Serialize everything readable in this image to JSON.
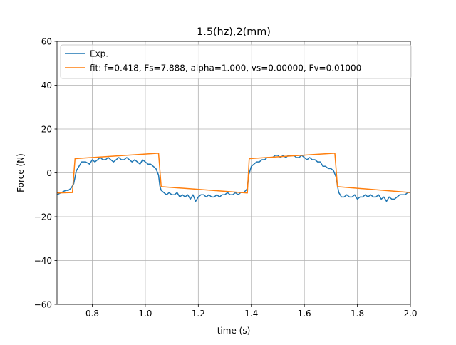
{
  "chart_data": {
    "type": "line",
    "title": "1.5(hz),2(mm)",
    "xlabel": "time (s)",
    "ylabel": "Force (N)",
    "xlim": [
      0.667,
      2.0
    ],
    "ylim": [
      -60,
      60
    ],
    "xticks": [
      0.8,
      1.0,
      1.2,
      1.4,
      1.6,
      1.8,
      2.0
    ],
    "xtick_labels": [
      "0.8",
      "1.0",
      "1.2",
      "1.4",
      "1.6",
      "1.8",
      "2.0"
    ],
    "yticks": [
      -60,
      -40,
      -20,
      0,
      20,
      40,
      60
    ],
    "ytick_labels": [
      "−60",
      "−40",
      "−20",
      "0",
      "20",
      "40",
      "60"
    ],
    "grid": true,
    "legend_position": "top-left",
    "series": [
      {
        "name": "Exp.",
        "color": "#1f77b4",
        "x": [
          0.667,
          0.683,
          0.7,
          0.71,
          0.72,
          0.73,
          0.74,
          0.75,
          0.76,
          0.775,
          0.79,
          0.8,
          0.81,
          0.82,
          0.83,
          0.84,
          0.85,
          0.86,
          0.87,
          0.88,
          0.89,
          0.9,
          0.91,
          0.92,
          0.93,
          0.94,
          0.95,
          0.96,
          0.97,
          0.98,
          0.99,
          1.0,
          1.01,
          1.02,
          1.03,
          1.04,
          1.05,
          1.055,
          1.06,
          1.07,
          1.08,
          1.09,
          1.1,
          1.11,
          1.12,
          1.13,
          1.14,
          1.15,
          1.16,
          1.17,
          1.18,
          1.19,
          1.2,
          1.21,
          1.22,
          1.23,
          1.24,
          1.25,
          1.26,
          1.27,
          1.28,
          1.29,
          1.3,
          1.31,
          1.32,
          1.33,
          1.34,
          1.35,
          1.36,
          1.37,
          1.38,
          1.385,
          1.39,
          1.4,
          1.41,
          1.42,
          1.43,
          1.44,
          1.45,
          1.46,
          1.47,
          1.48,
          1.49,
          1.5,
          1.51,
          1.52,
          1.53,
          1.54,
          1.55,
          1.56,
          1.57,
          1.58,
          1.59,
          1.6,
          1.61,
          1.62,
          1.63,
          1.64,
          1.65,
          1.66,
          1.67,
          1.68,
          1.69,
          1.7,
          1.71,
          1.72,
          1.725,
          1.73,
          1.74,
          1.75,
          1.76,
          1.77,
          1.78,
          1.79,
          1.8,
          1.81,
          1.82,
          1.83,
          1.84,
          1.85,
          1.86,
          1.87,
          1.88,
          1.89,
          1.9,
          1.91,
          1.92,
          1.93,
          1.94,
          1.95,
          1.96,
          1.97,
          1.98,
          1.99,
          2.0
        ],
        "y": [
          -10,
          -9,
          -8,
          -8,
          -7,
          -5,
          1,
          3,
          5,
          5,
          4,
          6,
          5,
          6,
          7,
          6,
          6,
          7,
          6,
          5,
          6,
          7,
          6,
          6,
          7,
          6,
          5,
          6,
          5,
          4,
          6,
          5,
          4,
          4,
          3,
          2,
          -1,
          -6,
          -8,
          -9,
          -10,
          -9,
          -10,
          -10,
          -9,
          -11,
          -10,
          -11,
          -10,
          -12,
          -10,
          -13,
          -11,
          -10,
          -10,
          -11,
          -10,
          -11,
          -11,
          -10,
          -11,
          -10,
          -10,
          -9,
          -10,
          -10,
          -9,
          -10,
          -9,
          -9,
          -8,
          -7,
          -1,
          3,
          4,
          5,
          5,
          6,
          6,
          7,
          7,
          7,
          8,
          8,
          7,
          8,
          7,
          8,
          8,
          8,
          7,
          7,
          8,
          7,
          6,
          7,
          6,
          6,
          5,
          5,
          3,
          3,
          2,
          2,
          1,
          -2,
          -6,
          -9,
          -11,
          -11,
          -10,
          -11,
          -11,
          -10,
          -12,
          -11,
          -11,
          -10,
          -11,
          -10,
          -11,
          -11,
          -10,
          -12,
          -11,
          -13,
          -11,
          -12,
          -12,
          -11,
          -10,
          -10,
          -10,
          -9,
          -9
        ]
      },
      {
        "name": "fit: f=0.418, Fs=7.888, alpha=1.000, vs=0.00000, Fv=0.01000",
        "color": "#ff7f0e",
        "x": [
          0.667,
          0.725,
          0.735,
          1.05,
          1.06,
          1.385,
          1.392,
          1.715,
          1.725,
          2.0
        ],
        "y": [
          -9.2,
          -9.0,
          6.5,
          9.0,
          -6.3,
          -9.2,
          6.5,
          9.0,
          -6.3,
          -9.0
        ]
      }
    ]
  }
}
